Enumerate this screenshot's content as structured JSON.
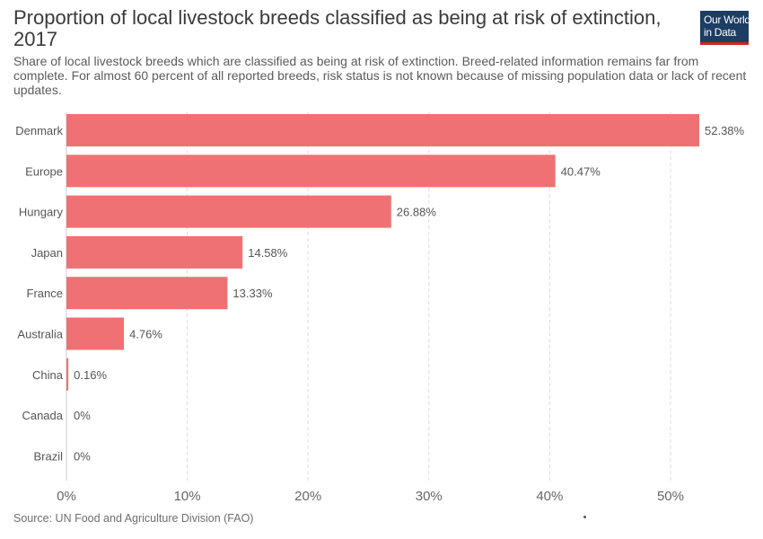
{
  "header": {
    "title": "Proportion of local livestock breeds classified as being at risk of extinction, 2017",
    "subtitle": "Share of local livestock breeds which are classified as being at risk of extinction. Breed-related information remains far from complete. For almost 60 percent of all reported breeds, risk status is not known because of missing population data or lack of recent updates."
  },
  "logo": {
    "line1": "Our World",
    "line2": "in Data",
    "bg_color": "#1d3d63",
    "accent_color": "#ce261e"
  },
  "footer": {
    "source": "Source: UN Food and Agriculture Division (FAO)"
  },
  "chart_data": {
    "type": "bar",
    "orientation": "horizontal",
    "title": "Proportion of local livestock breeds classified as being at risk of extinction, 2017",
    "categories": [
      "Denmark",
      "Europe",
      "Hungary",
      "Japan",
      "France",
      "Australia",
      "China",
      "Canada",
      "Brazil"
    ],
    "values": [
      52.38,
      40.47,
      26.88,
      14.58,
      13.33,
      4.76,
      0.16,
      0,
      0
    ],
    "value_labels": [
      "52.38%",
      "40.47%",
      "26.88%",
      "14.58%",
      "13.33%",
      "4.76%",
      "0.16%",
      "0%",
      "0%"
    ],
    "xlim": [
      0,
      52.38
    ],
    "xticks": [
      0,
      10,
      20,
      30,
      40,
      50
    ],
    "xtick_labels": [
      "0%",
      "10%",
      "20%",
      "30%",
      "40%",
      "50%"
    ],
    "xlabel": "",
    "ylabel": "",
    "grid": "vertical dashed",
    "bar_color": "#f07173"
  }
}
